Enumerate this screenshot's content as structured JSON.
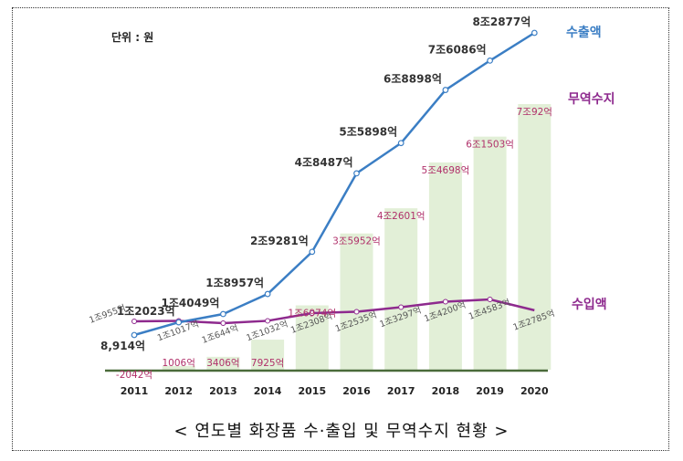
{
  "chart_data": {
    "type": "bar+line",
    "unit_label": "단위 : 원",
    "caption": "< 연도별 화장품 수·출입 및 무역수지 현황 >",
    "years": [
      "2011",
      "2012",
      "2013",
      "2014",
      "2015",
      "2016",
      "2017",
      "2018",
      "2019",
      "2020"
    ],
    "export": {
      "name": "수출액",
      "color": "#3b7ec4",
      "values": [
        8914,
        12023,
        14049,
        18957,
        29281,
        48487,
        55898,
        68898,
        76086,
        82877
      ],
      "labels": [
        "8,914억",
        "1조2023억",
        "1조4049억",
        "1조8957억",
        "2조9281억",
        "4조8487억",
        "5조5898억",
        "6조8898억",
        "7조6086억",
        "8조2877억"
      ]
    },
    "import": {
      "name": "수입액",
      "color": "#8e2a8e",
      "values": [
        10955,
        11017,
        10644,
        11032,
        12308,
        12535,
        13297,
        14200,
        14583,
        12785
      ],
      "labels": [
        "1조955억",
        "1조1017억",
        "1조644억",
        "1조1032억",
        "1조2308억",
        "1조2535억",
        "1조3297억",
        "1조4200억",
        "1조4583억",
        "1조2785억"
      ]
    },
    "trade_balance": {
      "name": "무역수지",
      "color": "#b0306a",
      "bar_color": "#e2efd7",
      "values": [
        -2042,
        1006,
        3406,
        7925,
        16974,
        35952,
        42601,
        54698,
        61503,
        70092
      ],
      "labels": [
        "-2042억",
        "1006억",
        "3406억",
        "7925억",
        "1조6974억",
        "3조5952억",
        "4조2601억",
        "5조4698억",
        "6조1503억",
        "7조92억"
      ]
    }
  }
}
